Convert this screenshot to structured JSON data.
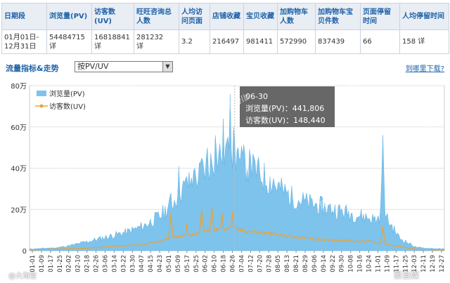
{
  "table": {
    "headers": [
      "日期段",
      "浏览量(PV)",
      "访客数(UV)",
      "旺旺咨询总人数",
      "人均访问页面",
      "店铺收藏",
      "宝贝收藏",
      "加购物车人数",
      "加购物车宝贝件数",
      "页面停留时间",
      "人均停留时间"
    ],
    "date_range": [
      "01月01日-",
      "12月31日"
    ],
    "pv": "54484715",
    "uv": "16818841",
    "ww": "281232",
    "detail": "详",
    "avg_pages": "3.2",
    "shop_fav": "216497",
    "item_fav": "981411",
    "cart_people": "572990",
    "cart_items": "837439",
    "stay": "66",
    "avg_stay": "158 详"
  },
  "controls": {
    "section_title": "流量指标&走势",
    "selector_value": "按PV/UV",
    "download_link": "到哪里下载?"
  },
  "tooltip": {
    "date": "06-30",
    "pv_line": "浏览量(PV)：441,806",
    "uv_line": "访客数(UV)：148,440"
  },
  "watermarks": [
    "网 赢 wlb",
    "网 赢 wlb",
    "网 赢 wlb",
    "网 赢 wlb",
    "网 赢 wlb",
    "网 赢 wlb"
  ],
  "footer": {
    "left": "@大淘宝",
    "right": "聚自媒"
  },
  "chart_data": {
    "type": "area",
    "series": [
      {
        "name": "浏览量(PV)",
        "color": "#7ec3ec"
      },
      {
        "name": "访客数(UV)",
        "color": "#e8a33c"
      }
    ],
    "ylim": [
      0,
      800000
    ],
    "yticks": [
      "0",
      "20万",
      "40万",
      "60万",
      "80万"
    ],
    "xticks": [
      "01-01",
      "01-09",
      "01-17",
      "01-25",
      "02-02",
      "02-10",
      "02-18",
      "02-26",
      "03-06",
      "03-14",
      "03-22",
      "03-30",
      "04-07",
      "04-15",
      "04-23",
      "05-01",
      "05-09",
      "05-17",
      "05-25",
      "06-02",
      "06-10",
      "06-18",
      "06-26",
      "07-04",
      "07-12",
      "07-20",
      "07-28",
      "08-05",
      "08-13",
      "08-21",
      "08-29",
      "09-06",
      "09-14",
      "09-22",
      "09-30",
      "10-08",
      "10-16",
      "10-24",
      "11-01",
      "11-09",
      "11-17",
      "11-25",
      "12-03",
      "12-11",
      "12-19",
      "12-27"
    ],
    "highlight": {
      "date": "06-30",
      "pv": 441806,
      "uv": 148440
    },
    "pv_profile": [
      [
        0,
        8000
      ],
      [
        25,
        15000
      ],
      [
        40,
        30000
      ],
      [
        55,
        50000
      ],
      [
        70,
        70000
      ],
      [
        85,
        90000
      ],
      [
        100,
        120000
      ],
      [
        115,
        170000
      ],
      [
        125,
        230000
      ],
      [
        135,
        300000
      ],
      [
        150,
        370000
      ],
      [
        160,
        430000
      ],
      [
        170,
        480000
      ],
      [
        180,
        440000
      ],
      [
        190,
        420000
      ],
      [
        200,
        380000
      ],
      [
        215,
        320000
      ],
      [
        230,
        260000
      ],
      [
        245,
        230000
      ],
      [
        260,
        210000
      ],
      [
        275,
        190000
      ],
      [
        290,
        170000
      ],
      [
        305,
        150000
      ],
      [
        310,
        200000
      ],
      [
        313,
        160000
      ],
      [
        325,
        60000
      ],
      [
        340,
        15000
      ],
      [
        364,
        8000
      ]
    ],
    "pv_spikes": [
      [
        124,
        280000
      ],
      [
        131,
        410000
      ],
      [
        138,
        360000
      ],
      [
        144,
        390000
      ],
      [
        151,
        450000
      ],
      [
        156,
        500000
      ],
      [
        163,
        560000
      ],
      [
        166,
        470000
      ],
      [
        170,
        640000
      ],
      [
        173,
        530000
      ],
      [
        176,
        760000
      ],
      [
        179,
        600000
      ],
      [
        183,
        500000
      ],
      [
        188,
        480000
      ],
      [
        194,
        450000
      ],
      [
        200,
        430000
      ],
      [
        206,
        400000
      ],
      [
        214,
        350000
      ],
      [
        221,
        330000
      ],
      [
        310,
        560000
      ]
    ],
    "uv_profile": [
      [
        0,
        3000
      ],
      [
        50,
        12000
      ],
      [
        100,
        30000
      ],
      [
        125,
        60000
      ],
      [
        150,
        90000
      ],
      [
        175,
        110000
      ],
      [
        200,
        90000
      ],
      [
        250,
        55000
      ],
      [
        300,
        45000
      ],
      [
        313,
        30000
      ],
      [
        340,
        6000
      ],
      [
        364,
        3000
      ]
    ],
    "uv_spikes": [
      [
        124,
        180000
      ],
      [
        138,
        130000
      ],
      [
        151,
        200000
      ],
      [
        160,
        210000
      ],
      [
        169,
        180000
      ],
      [
        178,
        190000
      ],
      [
        310,
        120000
      ]
    ]
  }
}
